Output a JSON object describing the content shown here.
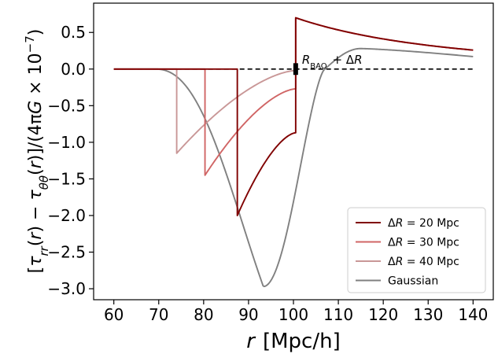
{
  "chart_data": {
    "type": "line",
    "xlabel": "r [Mpc/h]",
    "xlabel_italic_part": "r",
    "xlabel_rest": "[Mpc/h]",
    "ylabel": "[τ_rr(r) − τ_θθ(r)]/(4πG × 10^−7)",
    "xlim": [
      55.5,
      144.5
    ],
    "ylim": [
      -3.15,
      0.9
    ],
    "xticks": [
      60,
      70,
      80,
      90,
      100,
      110,
      120,
      130,
      140
    ],
    "yticks": [
      0.5,
      0.0,
      -0.5,
      -1.0,
      -1.5,
      -2.0,
      -2.5,
      -3.0
    ],
    "ytick_labels": [
      "0.5",
      "0.0",
      "−0.5",
      "−1.0",
      "−1.5",
      "−2.0",
      "−2.5",
      "−3.0"
    ],
    "legend_position": "lower-right",
    "grid": false,
    "annotation": {
      "text": "R_BAO + ΔR",
      "x": 100.5,
      "y": 0.0,
      "marker_range": [
        -0.08,
        0.08
      ]
    },
    "reference_line": {
      "y": 0.0,
      "x_range": [
        60,
        140
      ],
      "style": "dashed",
      "color": "#000000"
    },
    "series": [
      {
        "name": "ΔR = 20 Mpc",
        "label_prefix": "ΔR = 20",
        "label_unit": "Mpc",
        "color": "#800000",
        "params": {
          "start": 87.5,
          "end": 100.5,
          "trough": -2.0,
          "jump_low": -0.87,
          "jump_high": 0.7
        }
      },
      {
        "name": "ΔR = 30 Mpc",
        "label_prefix": "ΔR = 30",
        "label_unit": "Mpc",
        "color": "#d06565",
        "params": {
          "start": 80.3,
          "end": 100.5,
          "trough": -1.45,
          "jump_low": -0.27,
          "jump_high": 0.7
        }
      },
      {
        "name": "ΔR = 40 Mpc",
        "label_prefix": "ΔR = 40",
        "label_unit": "Mpc",
        "color": "#c99797",
        "params": {
          "start": 74.0,
          "end": 100.5,
          "trough": -1.15,
          "jump_low": -0.02,
          "jump_high": 0.7
        }
      },
      {
        "name": "Gaussian",
        "label_prefix": "Gaussian",
        "label_unit": "",
        "color": "#808080",
        "params": {
          "min_x": 93.3,
          "min_y": -2.97,
          "cross_x": 107.0,
          "peak_x": 115.0,
          "peak_y": 0.28,
          "end_y": 0.17
        }
      }
    ]
  }
}
